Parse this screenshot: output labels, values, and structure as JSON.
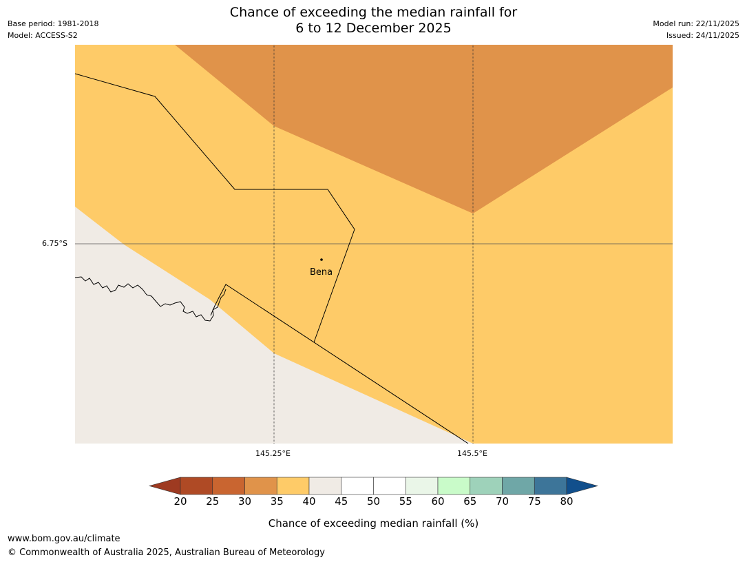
{
  "title": {
    "line1": "Chance of exceeding the median rainfall for",
    "line2": "6 to 12 December 2025"
  },
  "meta": {
    "base_period": "Base period: 1981-2018",
    "model": "Model: ACCESS-S2",
    "model_run": "Model run: 22/11/2025",
    "issued": "Issued: 24/11/2025"
  },
  "map": {
    "lat_label": "6.75°S",
    "lon_labels": [
      "145.25°E",
      "145.5°E"
    ],
    "place": "Bena",
    "colors": {
      "band_30_35": "#E0934A",
      "band_35_40": "#FECB68",
      "band_40_45": "#F0EBE5"
    }
  },
  "colorbar": {
    "ticks": [
      "20",
      "25",
      "30",
      "35",
      "40",
      "45",
      "50",
      "55",
      "60",
      "65",
      "70",
      "75",
      "80"
    ],
    "label": "Chance of exceeding median rainfall (%)",
    "colors": [
      "#9E3A21",
      "#AF4A25",
      "#C96530",
      "#E0934A",
      "#FECB68",
      "#F0EBE5",
      "#FFFFFF",
      "#FFFFFF",
      "#EAF6E8",
      "#C9FBC9",
      "#9ED2BA",
      "#6FA7A7",
      "#3D7599",
      "#114F8C"
    ]
  },
  "footer": {
    "url": "www.bom.gov.au/climate",
    "copyright": "© Commonwealth of Australia 2025, Australian Bureau of Meteorology"
  }
}
